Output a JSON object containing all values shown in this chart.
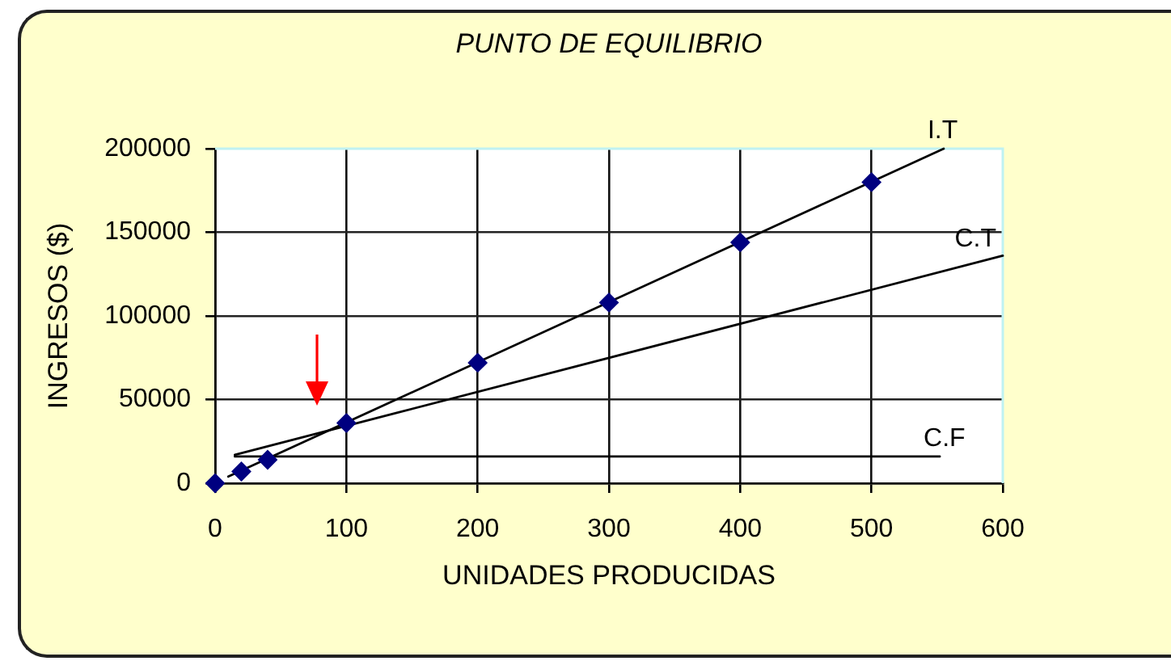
{
  "chart_data": {
    "type": "line",
    "title": "PUNTO DE EQUILIBRIO",
    "xlabel": "UNIDADES PRODUCIDAS",
    "ylabel": "INGRESOS ($)",
    "xlim": [
      0,
      600
    ],
    "xticks": [
      0,
      100,
      200,
      300,
      400,
      500,
      600
    ],
    "ylim": [
      0,
      200000
    ],
    "yticks": [
      0,
      50000,
      100000,
      150000,
      200000
    ],
    "grid": true,
    "series": [
      {
        "type": "scatter",
        "color": "#000080",
        "marker": "diamond",
        "x": [
          0,
          20,
          40,
          100,
          200,
          300,
          400,
          500
        ],
        "values": [
          0,
          7000,
          14000,
          36000,
          72000,
          108000,
          144000,
          180000
        ]
      },
      {
        "type": "line",
        "name": "I.T",
        "color": "#000000",
        "marker": "none",
        "x": [
          10,
          555
        ],
        "values": [
          4000,
          200000
        ]
      },
      {
        "type": "line",
        "name": "C.T",
        "color": "#000000",
        "marker": "none",
        "x": [
          15,
          600
        ],
        "values": [
          17000,
          136000
        ]
      },
      {
        "type": "line",
        "name": "C.F",
        "color": "#000000",
        "marker": "none",
        "x": [
          15,
          552
        ],
        "values": [
          16000,
          16000
        ]
      }
    ]
  }
}
